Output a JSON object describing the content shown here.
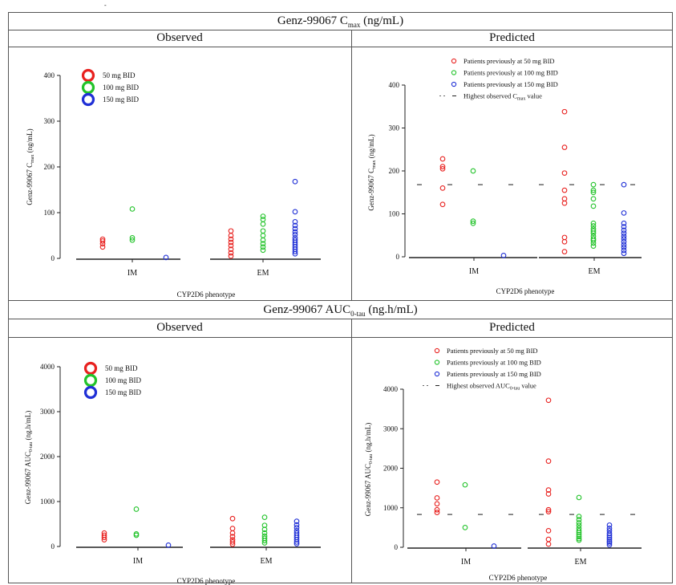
{
  "sections": [
    {
      "title_main": "Genz-99067 C",
      "title_sub": "max",
      "title_tail": " (ng/mL)",
      "observed_title": "Observed",
      "predicted_title": "Predicted"
    },
    {
      "title_main": "Genz-99067 AUC",
      "title_sub": "0-tau",
      "title_tail": " (ng.h/mL)",
      "observed_title": "Observed",
      "predicted_title": "Predicted"
    }
  ],
  "colors": {
    "red": "#e8211f",
    "green": "#22c32a",
    "blue": "#1f2fd6",
    "dash": "#666666"
  },
  "chart_data": [
    {
      "type": "scatter",
      "panel": "cmax-observed",
      "xlabel": "CYP2D6 phenotype",
      "ylabel": "Genz-99067 C",
      "ylabel_sub": "max",
      "ylabel_tail": " (ng/mL)",
      "categories": [
        "IM",
        "EM"
      ],
      "ylim": [
        0,
        400
      ],
      "yticks": [
        0,
        100,
        200,
        300,
        400
      ],
      "legend": [
        "50 mg BID",
        "100 mg BID",
        "150 mg BID"
      ],
      "legend_position": "top-left",
      "series": [
        {
          "name": "50 mg BID",
          "color": "red",
          "points": {
            "IM": [
              25,
              32,
              38,
              42
            ],
            "EM": [
              5,
              12,
              20,
              28,
              35,
              42,
              50,
              60
            ]
          }
        },
        {
          "name": "100 mg BID",
          "color": "green",
          "points": {
            "IM": [
              40,
              45,
              108
            ],
            "EM": [
              18,
              25,
              32,
              40,
              50,
              60,
              75,
              85,
              92
            ]
          }
        },
        {
          "name": "150 mg BID",
          "color": "blue",
          "points": {
            "IM": [
              2
            ],
            "EM": [
              10,
              15,
              20,
              25,
              30,
              35,
              40,
              45,
              52,
              58,
              65,
              72,
              80,
              102,
              168
            ]
          }
        }
      ]
    },
    {
      "type": "scatter",
      "panel": "cmax-predicted",
      "xlabel": "CYP2D6 phenotype",
      "ylabel": "Genz-99067 C",
      "ylabel_sub": "max",
      "ylabel_tail": " (ng/mL)",
      "categories": [
        "IM",
        "EM"
      ],
      "ylim": [
        0,
        400
      ],
      "yticks": [
        0,
        100,
        200,
        300,
        400
      ],
      "reference_line": 168,
      "legend": [
        "Patients previously at 50 mg BID",
        "Patients previously at 100 mg BID",
        "Patients previously at 150 mg BID",
        "Highest observed C"
      ],
      "legend_ref_sub": "max",
      "legend_ref_tail": " value",
      "legend_position": "top-right",
      "series": [
        {
          "name": "Patients previously at 50 mg BID",
          "color": "red",
          "points": {
            "IM": [
              122,
              160,
              205,
              210,
              228
            ],
            "EM": [
              12,
              35,
              45,
              125,
              135,
              155,
              195,
              255,
              338
            ]
          }
        },
        {
          "name": "Patients previously at 100 mg BID",
          "color": "green",
          "points": {
            "IM": [
              78,
              83,
              200
            ],
            "EM": [
              25,
              32,
              38,
              42,
              48,
              55,
              60,
              65,
              72,
              78,
              118,
              135,
              150,
              155,
              168
            ]
          }
        },
        {
          "name": "Patients previously at 150 mg BID",
          "color": "blue",
          "points": {
            "IM": [
              3
            ],
            "EM": [
              8,
              15,
              22,
              28,
              35,
              42,
              48,
              55,
              62,
              70,
              78,
              102,
              168
            ]
          }
        }
      ]
    },
    {
      "type": "scatter",
      "panel": "auc-observed",
      "xlabel": "CYP2D6 phenotype",
      "ylabel": "Genz-99067 AUC",
      "ylabel_sub": "0-tau",
      "ylabel_tail": " (ng.h/mL)",
      "categories": [
        "IM",
        "EM"
      ],
      "ylim": [
        0,
        4000
      ],
      "yticks": [
        0,
        1000,
        2000,
        3000,
        4000
      ],
      "legend": [
        "50 mg BID",
        "100 mg BID",
        "150 mg BID"
      ],
      "legend_position": "top-left",
      "series": [
        {
          "name": "50 mg BID",
          "color": "red",
          "points": {
            "IM": [
              150,
              200,
              250,
              300
            ],
            "EM": [
              50,
              100,
              150,
              220,
              300,
              400,
              620
            ]
          }
        },
        {
          "name": "100 mg BID",
          "color": "green",
          "points": {
            "IM": [
              250,
              280,
              830
            ],
            "EM": [
              80,
              130,
              180,
              230,
              300,
              380,
              470,
              650
            ]
          }
        },
        {
          "name": "150 mg BID",
          "color": "blue",
          "points": {
            "IM": [
              30
            ],
            "EM": [
              60,
              100,
              150,
              200,
              250,
              300,
              350,
              420,
              480,
              560
            ]
          }
        }
      ]
    },
    {
      "type": "scatter",
      "panel": "auc-predicted",
      "xlabel": "CYP2D6 phenotype",
      "ylabel": "Genz-99067 AUC",
      "ylabel_sub": "0-tau",
      "ylabel_tail": " (ng.h/mL)",
      "categories": [
        "IM",
        "EM"
      ],
      "ylim": [
        0,
        4000
      ],
      "yticks": [
        0,
        1000,
        2000,
        3000,
        4000
      ],
      "reference_line": 830,
      "legend": [
        "Patients previously at 50 mg BID",
        "Patients previously at 100 mg BID",
        "Patients previously at 150 mg BID",
        "Highest observed AUC"
      ],
      "legend_ref_sub": "0-tau",
      "legend_ref_tail": " value",
      "legend_position": "top-right",
      "series": [
        {
          "name": "Patients previously at 50 mg BID",
          "color": "red",
          "points": {
            "IM": [
              880,
              950,
              1100,
              1250,
              1650
            ],
            "EM": [
              80,
              200,
              420,
              900,
              950,
              1350,
              1450,
              2180,
              3720
            ]
          }
        },
        {
          "name": "Patients previously at 100 mg BID",
          "color": "green",
          "points": {
            "IM": [
              500,
              1580
            ],
            "EM": [
              180,
              220,
              270,
              320,
              370,
              420,
              480,
              550,
              620,
              700,
              780,
              1260
            ]
          }
        },
        {
          "name": "Patients previously at 150 mg BID",
          "color": "blue",
          "points": {
            "IM": [
              30
            ],
            "EM": [
              60,
              110,
              150,
              200,
              250,
              300,
              350,
              420,
              480,
              560
            ]
          }
        }
      ]
    }
  ]
}
